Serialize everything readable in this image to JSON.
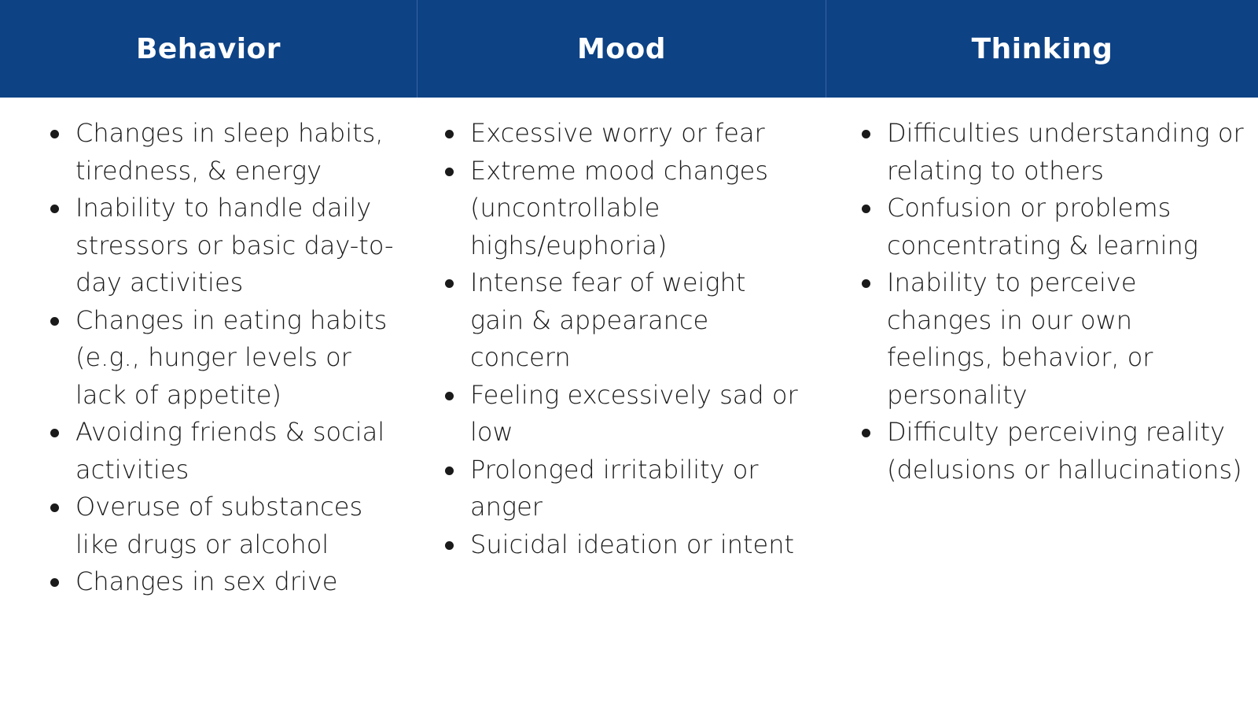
{
  "columns": [
    {
      "header": "Behavior",
      "items": [
        "Changes in sleep habits, tiredness, & energy",
        "Inability to handle daily stressors or basic day-to-day activities",
        "Changes in eating habits (e.g., hunger levels or lack of appetite)",
        "Avoiding friends & social activities",
        "Overuse of substances like drugs or alcohol",
        "Changes in sex drive"
      ]
    },
    {
      "header": "Mood",
      "items": [
        "Excessive worry or fear",
        "Extreme mood changes (uncontrollable highs/euphoria)",
        "Intense fear of weight gain & appearance concern",
        "Feeling excessively sad or low",
        "Prolonged irritability or anger",
        "Suicidal ideation or intent"
      ]
    },
    {
      "header": "Thinking",
      "items": [
        "Difficulties understanding or relating to others",
        "Confusion or problems concentrating & learning",
        "Inability to perceive changes in our own feelings, behavior, or personality",
        "Difficulty perceiving reality (delusions or hallucinations)"
      ]
    }
  ],
  "colors": {
    "header_background": "#0d4285",
    "header_text": "#ffffff",
    "body_text": "#1a1a1a"
  }
}
